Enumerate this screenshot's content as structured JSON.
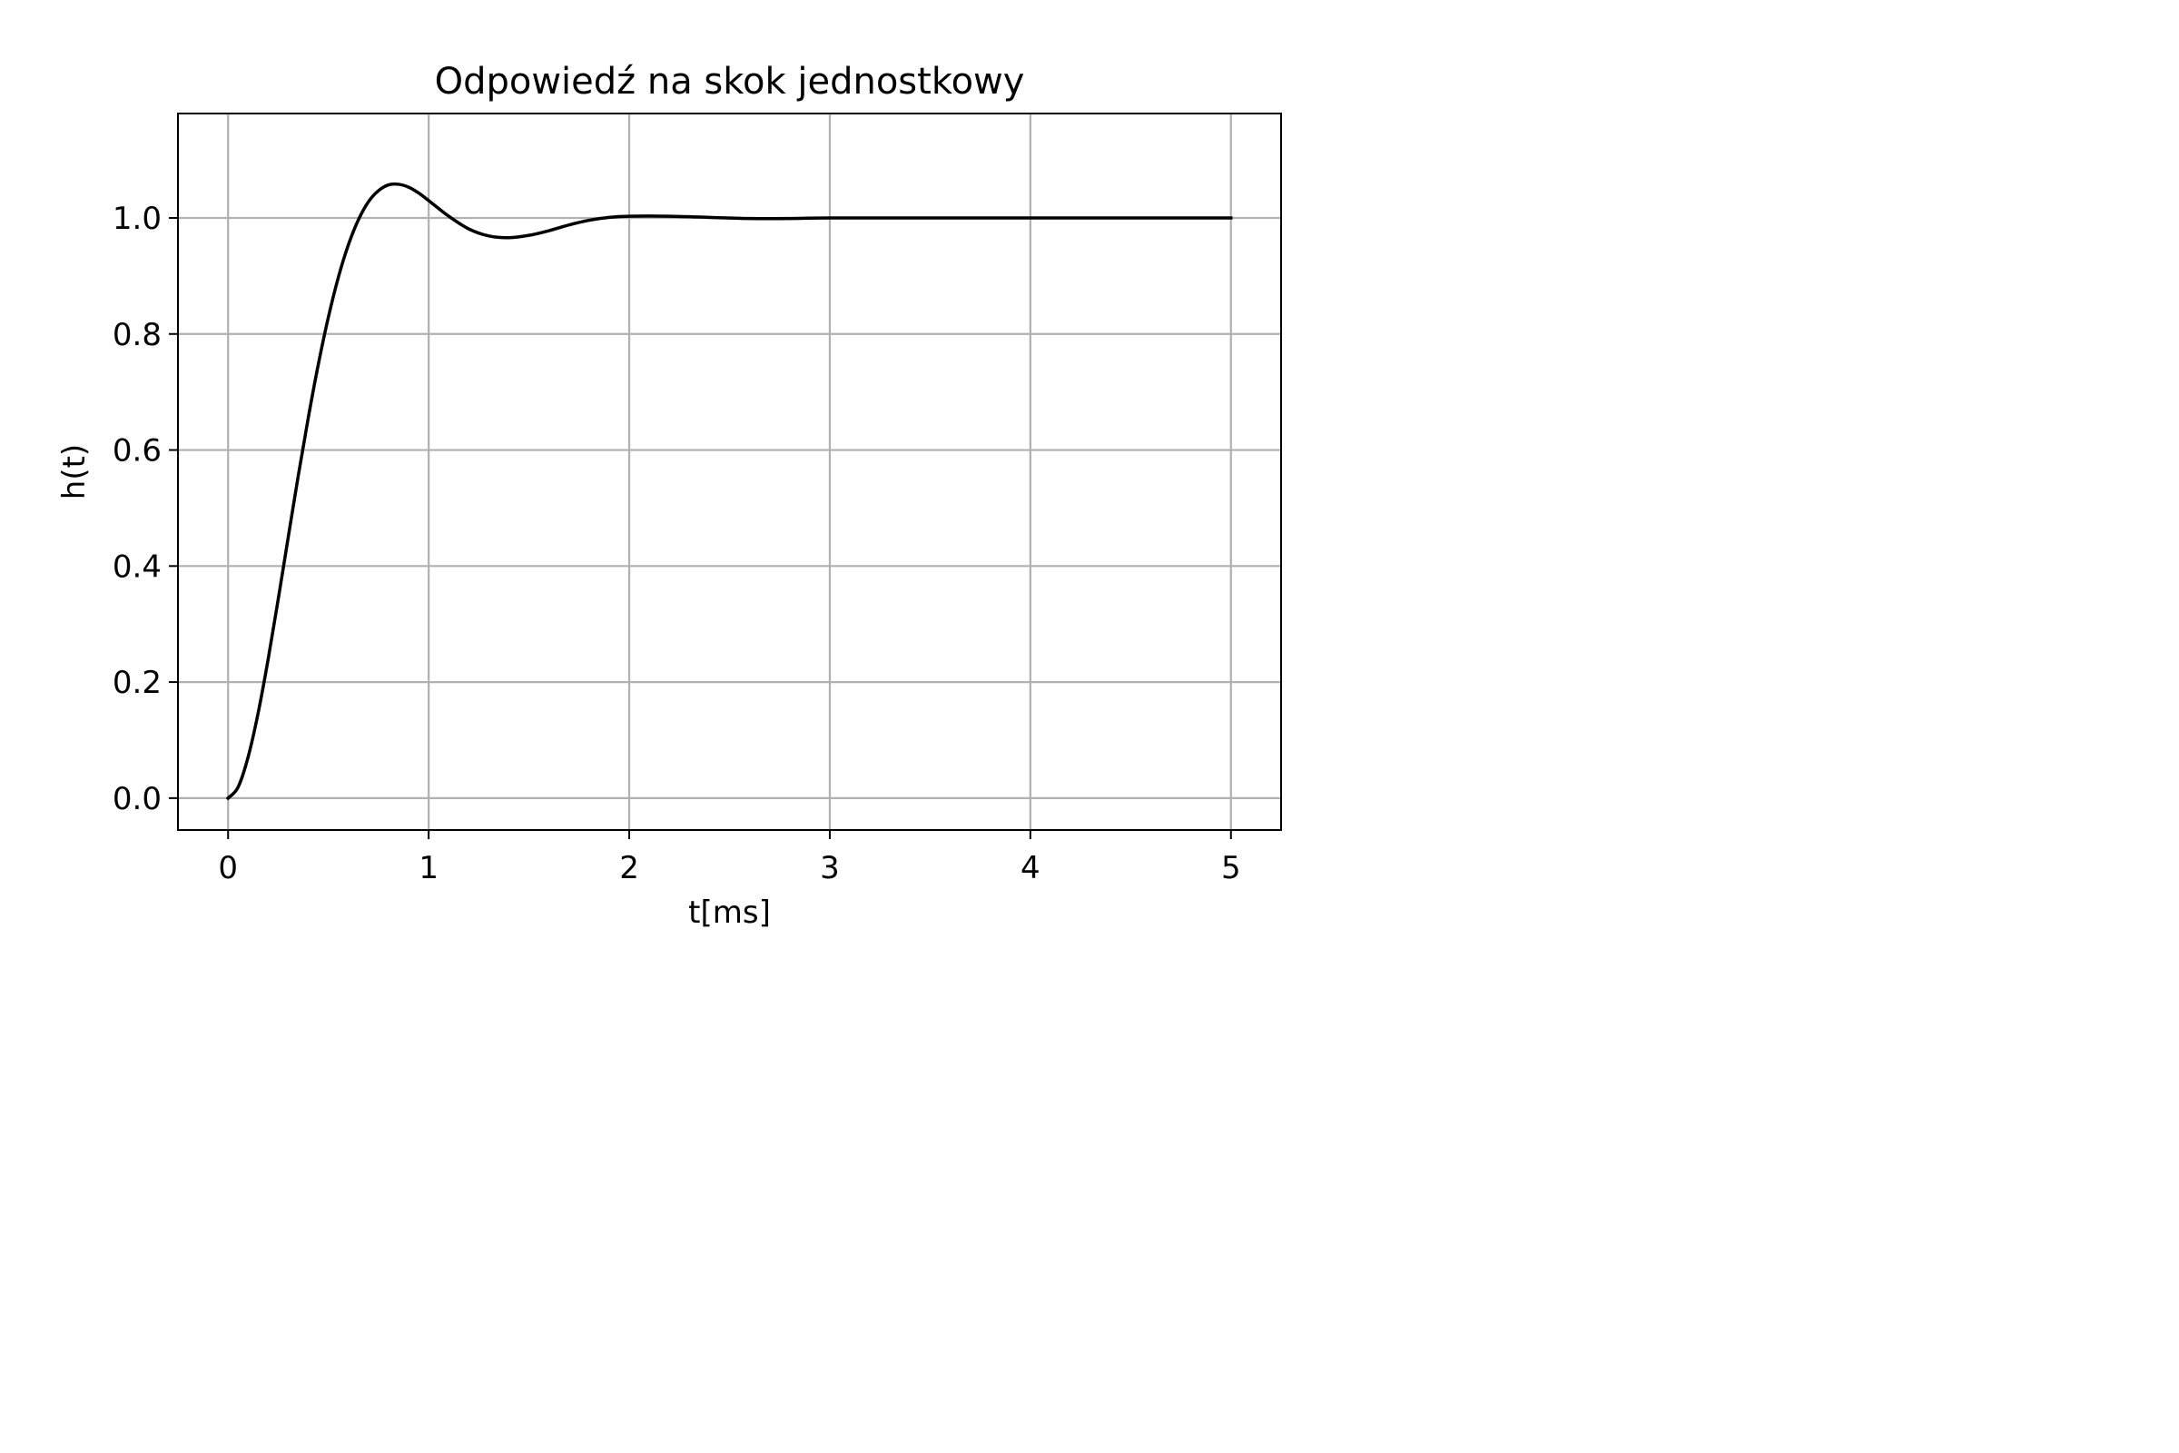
{
  "chart_data": {
    "type": "line",
    "title": "Odpowiedź na skok jednostkowy",
    "xlabel": "t[ms]",
    "ylabel": "h(t)",
    "xlim": [
      -0.25,
      5.25
    ],
    "ylim": [
      -0.055,
      1.18
    ],
    "xticks": [
      0,
      1,
      2,
      3,
      4,
      5
    ],
    "xtick_labels": [
      "0",
      "1",
      "2",
      "3",
      "4",
      "5"
    ],
    "yticks": [
      0.0,
      0.2,
      0.4,
      0.6,
      0.8,
      1.0
    ],
    "ytick_labels": [
      "0.0",
      "0.2",
      "0.4",
      "0.6",
      "0.8",
      "1.0"
    ],
    "grid": true,
    "legend": "none",
    "colors": {
      "line": "#000000",
      "grid": "#b0b0b0",
      "axes": "#000000",
      "background": "#ffffff"
    },
    "series": [
      {
        "x": [
          0.0,
          0.05,
          0.1,
          0.15,
          0.2,
          0.25,
          0.3,
          0.35,
          0.4,
          0.45,
          0.5,
          0.55,
          0.6,
          0.65,
          0.7,
          0.75,
          0.8,
          0.85,
          0.9,
          0.95,
          1.0,
          1.1,
          1.2,
          1.3,
          1.4,
          1.5,
          1.6,
          1.7,
          1.8,
          1.9,
          2.0,
          2.2,
          2.4,
          2.6,
          2.8,
          3.0,
          3.5,
          4.0,
          4.5,
          5.0
        ],
        "y": [
          0.0,
          0.019,
          0.071,
          0.147,
          0.24,
          0.343,
          0.45,
          0.556,
          0.656,
          0.748,
          0.829,
          0.898,
          0.954,
          0.997,
          1.028,
          1.047,
          1.057,
          1.058,
          1.053,
          1.043,
          1.03,
          1.003,
          0.981,
          0.969,
          0.966,
          0.97,
          0.978,
          0.988,
          0.996,
          1.001,
          1.003,
          1.003,
          1.001,
          0.999,
          0.999,
          1.0,
          1.0,
          1.0,
          1.0,
          1.0
        ]
      }
    ]
  }
}
